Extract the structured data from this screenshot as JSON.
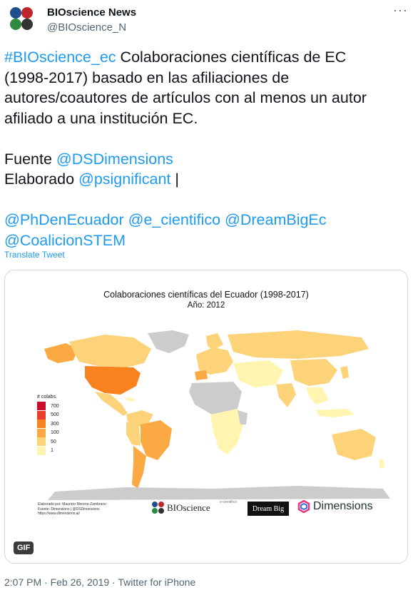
{
  "author": {
    "name": "BIOscience News",
    "handle": "@BIOscience_N"
  },
  "menu_icon": "more-horizontal-icon",
  "tweet": {
    "lines": [
      [
        {
          "t": "#BIOscience_ec",
          "link": true
        },
        {
          "t": " Colaboraciones científicas de EC",
          "link": false
        }
      ],
      [
        {
          "t": "(1998-2017) basado en las afiliaciones de",
          "link": false
        }
      ],
      [
        {
          "t": "autores/coautores de artículos con al menos un autor",
          "link": false
        }
      ],
      [
        {
          "t": "afiliado a una institución EC.",
          "link": false
        }
      ],
      [],
      [
        {
          "t": "Fuente ",
          "link": false
        },
        {
          "t": "@DSDimensions",
          "link": true
        }
      ],
      [
        {
          "t": "Elaborado ",
          "link": false
        },
        {
          "t": "@psignificant",
          "link": true
        },
        {
          "t": " |",
          "link": false
        }
      ],
      [],
      [
        {
          "t": "@PhDenEcuador",
          "link": true
        },
        {
          "t": " ",
          "link": false
        },
        {
          "t": "@e_cientifico",
          "link": true
        },
        {
          "t": " ",
          "link": false
        },
        {
          "t": "@DreamBigEc",
          "link": true
        }
      ],
      [
        {
          "t": "@CoalicionSTEM",
          "link": true
        }
      ]
    ],
    "link_color": "#1d9bf0"
  },
  "translate_label": "Translate Tweet",
  "media": {
    "title": "Colaboraciones científicas del Ecuador (1998-2017)",
    "year": "Año: 2012",
    "legend": {
      "title": "# colabs.",
      "items": [
        {
          "label": "700",
          "color": "#c8102e"
        },
        {
          "label": "500",
          "color": "#e8402a"
        },
        {
          "label": "300",
          "color": "#f7821f"
        },
        {
          "label": "100",
          "color": "#fba943"
        },
        {
          "label": "50",
          "color": "#fdd37a"
        },
        {
          "label": "1",
          "color": "#fff5b0"
        }
      ]
    },
    "credit_lines": [
      "Elaborado por: Mauricio Moreno-Zambrano",
      "Fuente: Dimensions | @DSDimensions",
      "https://www.dimensions.ai/"
    ],
    "logos": {
      "bioscience": "BIOscience",
      "cientifico": "e-cientifico",
      "dreambig": "Dream Big",
      "dimensions": "Dimensions"
    },
    "gif_badge": "GIF"
  },
  "meta": {
    "time": "2:07 PM",
    "separator": " · ",
    "date": "Feb 26, 2019",
    "source": "Twitter for iPhone"
  }
}
